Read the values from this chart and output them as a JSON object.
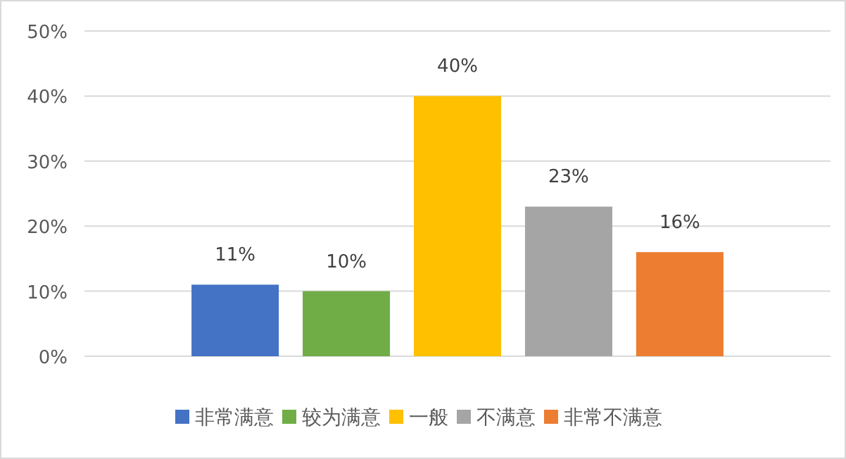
{
  "chart_data": {
    "type": "bar",
    "categories": [
      null
    ],
    "series": [
      {
        "name": "非常满意",
        "color": "#4472c4",
        "values": [
          11
        ]
      },
      {
        "name": "较为满意",
        "color": "#70ad47",
        "values": [
          10
        ]
      },
      {
        "name": "一般",
        "color": "#ffc000",
        "values": [
          40
        ]
      },
      {
        "name": "不满意",
        "color": "#a5a5a5",
        "values": [
          23
        ]
      },
      {
        "name": "非常不满意",
        "color": "#ed7d31",
        "values": [
          16
        ]
      }
    ],
    "ylim": [
      0,
      50
    ],
    "yticks": [
      {
        "value": 0,
        "label": "0%"
      },
      {
        "value": 10,
        "label": "10%"
      },
      {
        "value": 20,
        "label": "20%"
      },
      {
        "value": 30,
        "label": "30%"
      },
      {
        "value": 40,
        "label": "40%"
      },
      {
        "value": 50,
        "label": "50%"
      }
    ],
    "grid": "y",
    "legend": "bottom",
    "value_labels": [
      "11%",
      "10%",
      "40%",
      "23%",
      "16%"
    ]
  }
}
